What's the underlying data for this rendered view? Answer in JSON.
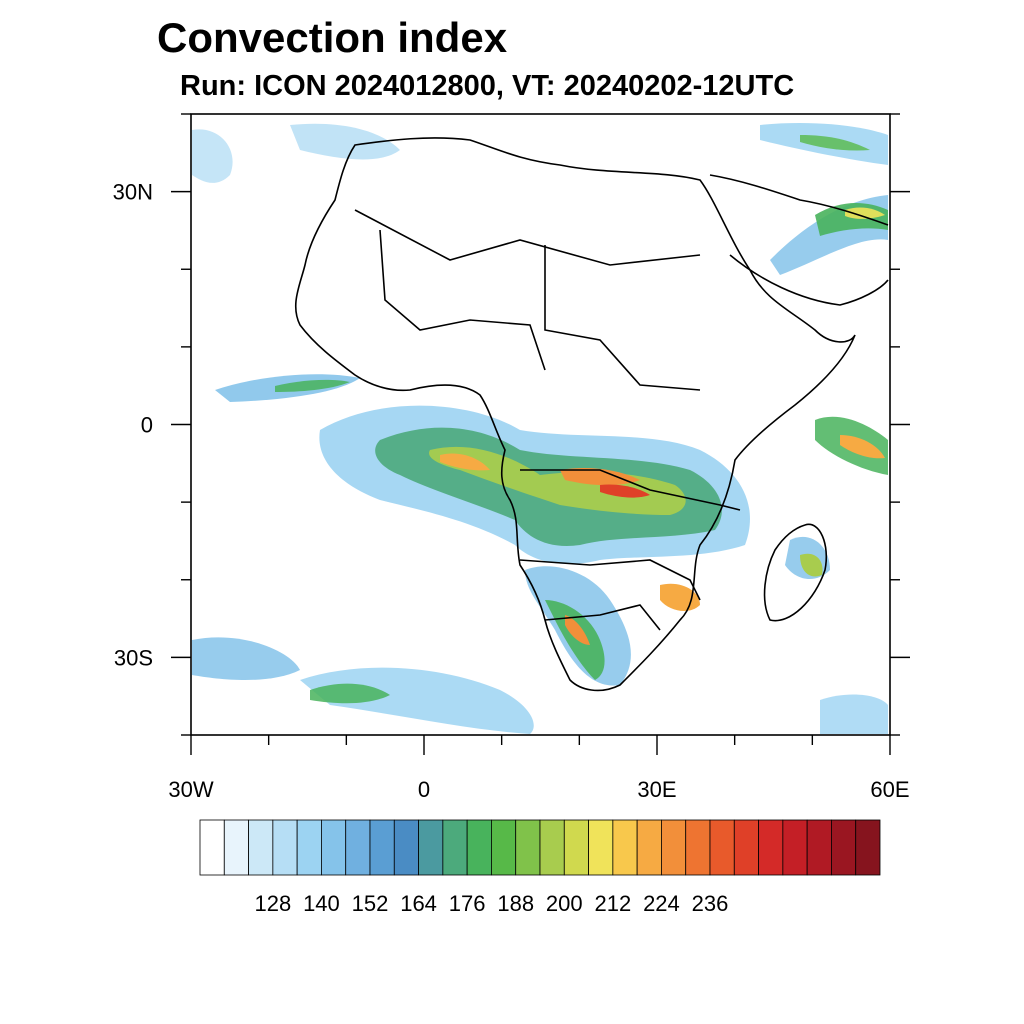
{
  "title": "Convection index",
  "subtitle": "Run: ICON 2024012800,  VT: 20240202-12UTC",
  "map": {
    "region": "Africa",
    "lon_range": [
      -30,
      60
    ],
    "lat_range": [
      -40,
      40
    ],
    "lon_ticks": [
      {
        "lon": -30,
        "label": "30W"
      },
      {
        "lon": 0,
        "label": "0"
      },
      {
        "lon": 30,
        "label": "30E"
      },
      {
        "lon": 60,
        "label": "60E"
      }
    ],
    "lat_ticks": [
      {
        "lat": 30,
        "label": "30N"
      },
      {
        "lat": 0,
        "label": "0"
      },
      {
        "lat": -30,
        "label": "30S"
      }
    ]
  },
  "colorbar": {
    "tick_labels": [
      "128",
      "140",
      "152",
      "164",
      "176",
      "188",
      "200",
      "212",
      "224",
      "236"
    ],
    "colors": [
      "#ffffff",
      "#e8f4fc",
      "#cce8f7",
      "#b6def5",
      "#9cd3f2",
      "#85c3ea",
      "#70b0e0",
      "#5a9ed3",
      "#4a8cc4",
      "#4b9aa0",
      "#4caa7c",
      "#48b35c",
      "#57b948",
      "#80c24a",
      "#a8cc4e",
      "#d0d94e",
      "#f0e35a",
      "#f8c84c",
      "#f6aa43",
      "#f28f3a",
      "#ee7431",
      "#e85a2b",
      "#df4028",
      "#d42a28",
      "#c41f26",
      "#b01a24",
      "#9a1621",
      "#86141e"
    ]
  }
}
